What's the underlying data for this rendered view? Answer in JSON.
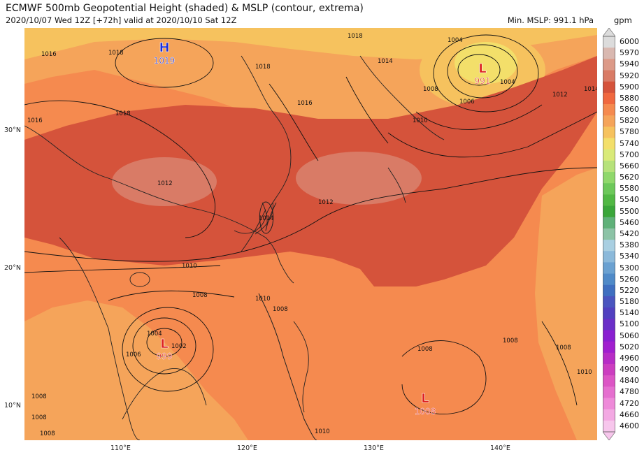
{
  "title": "ECMWF 500mb Geopotential Height (shaded) & MSLP (contour, extrema)",
  "subtitle": "2020/10/07 Wed 12Z [+72h] valid at 2020/10/10 Sat 12Z",
  "min_mslp": "Min. MSLP: 991.1 hPa",
  "units": "gpm",
  "lat_labels": [
    "30°N",
    "20°N",
    "10°N"
  ],
  "lon_labels": [
    "110°E",
    "120°E",
    "130°E",
    "140°E"
  ],
  "colorbar": {
    "levels": [
      "6000",
      "5970",
      "5940",
      "5920",
      "5900",
      "5880",
      "5860",
      "5820",
      "5780",
      "5740",
      "5700",
      "5660",
      "5620",
      "5580",
      "5540",
      "5500",
      "5460",
      "5420",
      "5380",
      "5340",
      "5300",
      "5260",
      "5220",
      "5180",
      "5140",
      "5100",
      "5060",
      "5020",
      "4960",
      "4900",
      "4840",
      "4780",
      "4720",
      "4660",
      "4600"
    ],
    "colors": [
      "#dcdcdc",
      "#d9b8b0",
      "#dc9a88",
      "#d97b66",
      "#d5533b",
      "#f0683f",
      "#f58a4f",
      "#f5a45a",
      "#f6c25e",
      "#f3df6a",
      "#d9ea79",
      "#b6e27a",
      "#8fd86b",
      "#6cc85a",
      "#51b844",
      "#3aa63a",
      "#5fb179",
      "#8cc3a6",
      "#a9cfe1",
      "#8bb9da",
      "#6aa1d1",
      "#4f8ac8",
      "#3f6fc0",
      "#4a55bf",
      "#5140c0",
      "#6a2fc8",
      "#8a1fd1",
      "#a11fcf",
      "#b72dc6",
      "#cc3ec0",
      "#dc55c5",
      "#e56fcf",
      "#ee8ad9",
      "#f3a9e3",
      "#f7c6ec"
    ]
  },
  "extrema": [
    {
      "type": "H",
      "value": "1019",
      "color": "#1a2bd6"
    },
    {
      "type": "L",
      "value": "991",
      "color": "#dd2020"
    },
    {
      "type": "L",
      "value": "999",
      "color": "#dd2020"
    },
    {
      "type": "L",
      "value": "1008",
      "color": "#dd2020"
    }
  ],
  "isobar_labels": [
    "1016",
    "1018",
    "1018",
    "1018",
    "1016",
    "1018",
    "1016",
    "1014",
    "1008",
    "1004",
    "1004",
    "1006",
    "1012",
    "1014",
    "1010",
    "1012",
    "1014",
    "1010",
    "1008",
    "1012",
    "1010",
    "1008",
    "1004",
    "1006",
    "1002",
    "1008",
    "1008",
    "1008",
    "1008",
    "1010",
    "1008",
    "1008",
    "1010"
  ]
}
